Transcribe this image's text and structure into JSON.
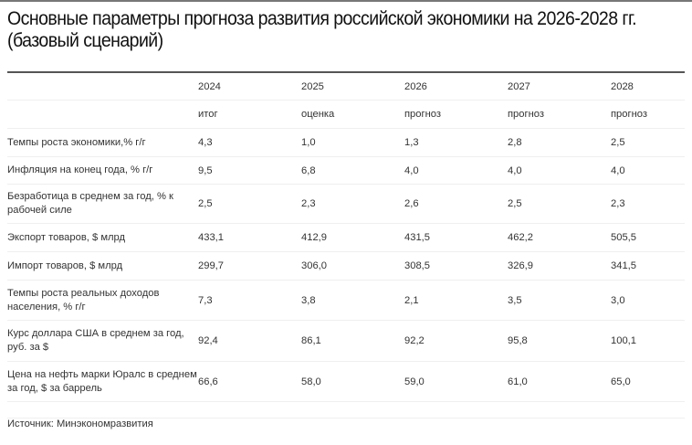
{
  "title": {
    "line1": "Основные параметры прогноза развития российской экономики на 2026-2028 гг.",
    "line2": "(базовый сценарий)"
  },
  "table": {
    "years": [
      "2024",
      "2025",
      "2026",
      "2027",
      "2028"
    ],
    "status": [
      "итог",
      "оценка",
      "прогноз",
      "прогноз",
      "прогноз"
    ],
    "rows": [
      {
        "label": "Темпы роста экономики,% г/г",
        "values": [
          "4,3",
          "1,0",
          "1,3",
          "2,8",
          "2,5"
        ]
      },
      {
        "label": "Инфляция на конец года, % г/г",
        "values": [
          "9,5",
          "6,8",
          "4,0",
          "4,0",
          "4,0"
        ]
      },
      {
        "label": "Безработица в среднем за год, % к рабочей силе",
        "values": [
          "2,5",
          "2,3",
          "2,6",
          "2,5",
          "2,3"
        ]
      },
      {
        "label": "Экспорт товаров, $ млрд",
        "values": [
          "433,1",
          "412,9",
          "431,5",
          "462,2",
          "505,5"
        ]
      },
      {
        "label": "Импорт товаров, $ млрд",
        "values": [
          "299,7",
          "306,0",
          "308,5",
          "326,9",
          "341,5"
        ]
      },
      {
        "label": "Темпы роста реальных доходов населения, % г/г",
        "values": [
          "7,3",
          "3,8",
          "2,1",
          "3,5",
          "3,0"
        ]
      },
      {
        "label": "Курс доллара США в среднем за год, руб. за $",
        "values": [
          "92,4",
          "86,1",
          "92,2",
          "95,8",
          "100,1"
        ]
      },
      {
        "label": "Цена на нефть марки Юралс в среднем за год, $ за баррель",
        "values": [
          "66,6",
          "58,0",
          "59,0",
          "61,0",
          "65,0"
        ]
      }
    ]
  },
  "source": "Источник: Минэкономразвития"
}
